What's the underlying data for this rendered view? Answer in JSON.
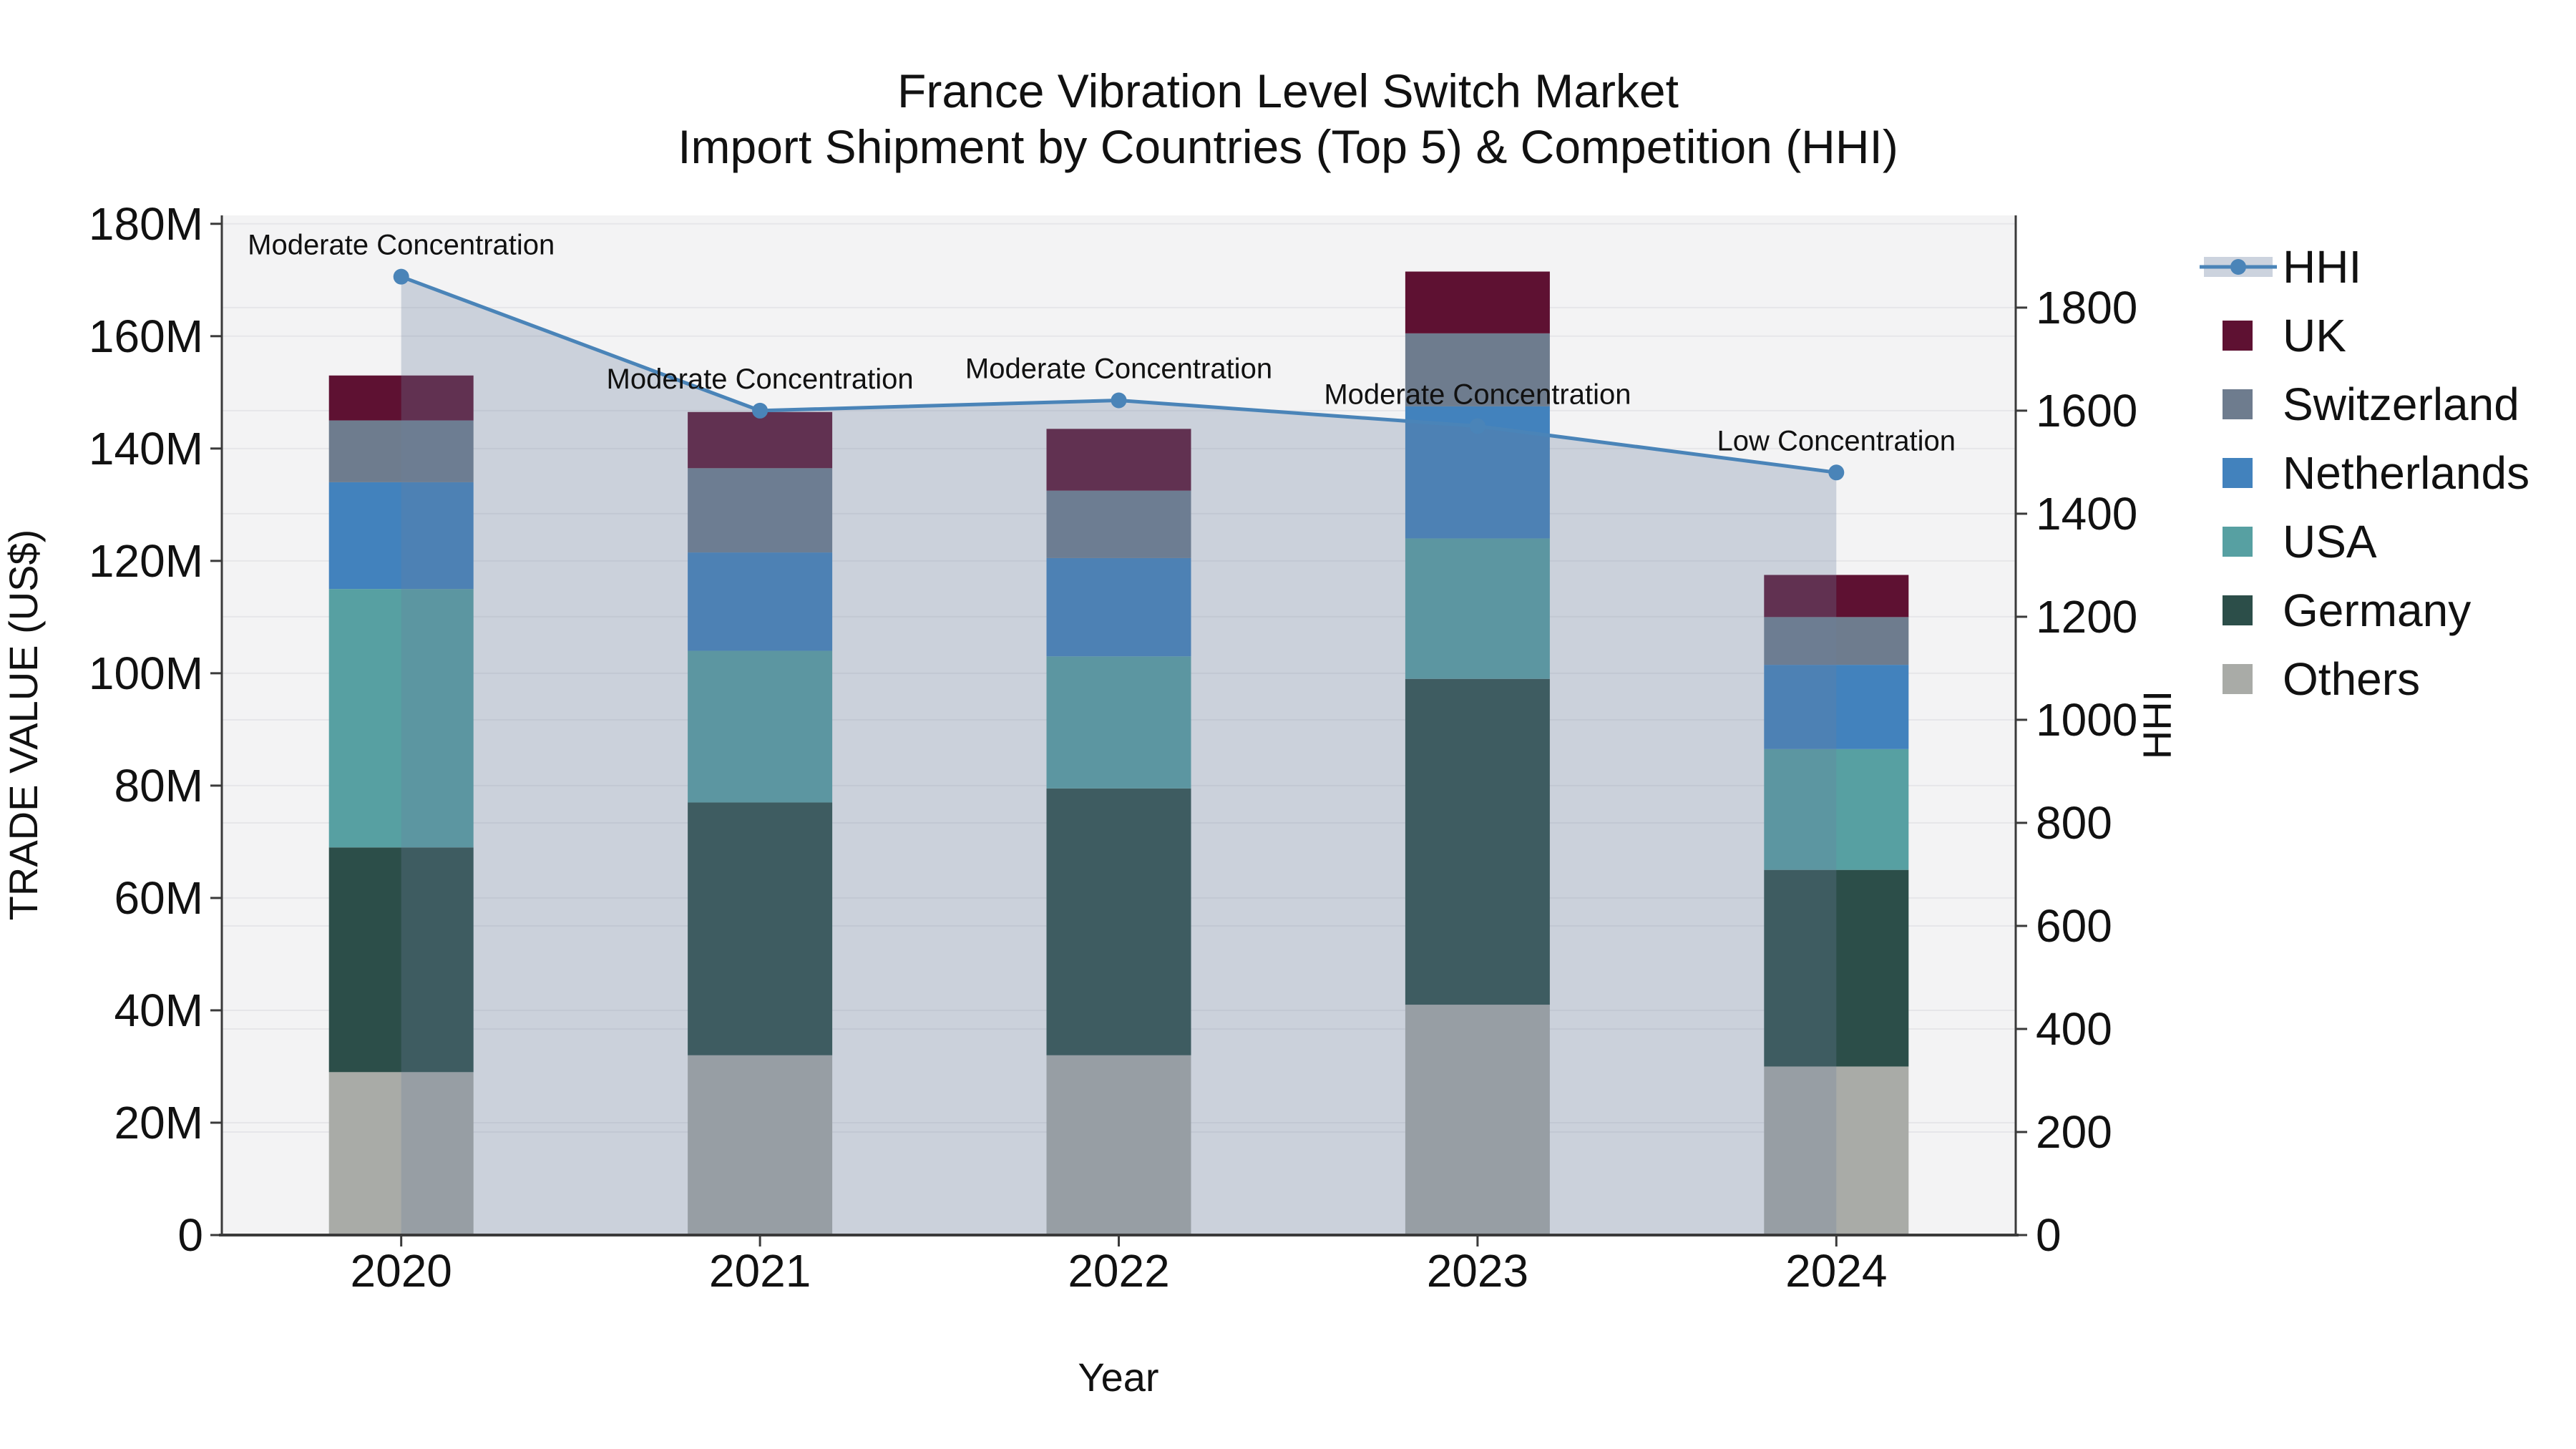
{
  "title": {
    "line1": "France Vibration Level Switch Market",
    "line2": "Import Shipment by Countries (Top 5) & Competition (HHI)"
  },
  "axes": {
    "x_title": "Year",
    "y_left_title": "TRADE VALUE (US$)",
    "y_right_title": "HHI"
  },
  "legend": [
    {
      "label": "HHI",
      "type": "line"
    },
    {
      "label": "UK",
      "type": "patch"
    },
    {
      "label": "Switzerland",
      "type": "patch"
    },
    {
      "label": "Netherlands",
      "type": "patch"
    },
    {
      "label": "USA",
      "type": "patch"
    },
    {
      "label": "Germany",
      "type": "patch"
    },
    {
      "label": "Others",
      "type": "patch"
    }
  ],
  "colors": {
    "UK": "#5e1132",
    "Switzerland": "#6e7c8e",
    "Netherlands": "#4282bd",
    "USA": "#57a0a2",
    "Germany": "#2c4e49",
    "Others": "#a9aba7",
    "hhi_line": "#4a84b8",
    "hhi_area": "rgba(106,126,160,0.29)",
    "plot_bg": "#f3f3f4",
    "grid": "#e6e6e9",
    "spine": "#3a3a3a",
    "text": "#111111",
    "legend_hhi_band": "#ccd3de"
  },
  "chart_data": {
    "type": "bar",
    "subtype": "stacked bars (trade value, left axis) + HHI line (right axis) with shaded area under line",
    "categories": [
      "2020",
      "2021",
      "2022",
      "2023",
      "2024"
    ],
    "value_unit": "million US$",
    "series": [
      {
        "name": "Others",
        "values": [
          29,
          32,
          32,
          41,
          30
        ]
      },
      {
        "name": "Germany",
        "values": [
          40,
          45,
          47.5,
          58,
          35
        ]
      },
      {
        "name": "USA",
        "values": [
          46,
          27,
          23.5,
          25,
          21.5
        ]
      },
      {
        "name": "Netherlands",
        "values": [
          19,
          17.5,
          17.5,
          23.5,
          15
        ]
      },
      {
        "name": "Switzerland",
        "values": [
          11,
          15,
          12,
          13,
          8.5
        ]
      },
      {
        "name": "UK",
        "values": [
          8,
          10,
          11,
          11,
          7.5
        ]
      }
    ],
    "stack_totals": [
      153,
      146.5,
      143.5,
      171.5,
      117.5
    ],
    "line_series": {
      "name": "HHI",
      "values": [
        1860,
        1600,
        1620,
        1570,
        1480
      ]
    },
    "annotations": [
      {
        "category": "2020",
        "text": "Moderate Concentration"
      },
      {
        "category": "2021",
        "text": "Moderate Concentration"
      },
      {
        "category": "2022",
        "text": "Moderate Concentration"
      },
      {
        "category": "2023",
        "text": "Moderate Concentration"
      },
      {
        "category": "2024",
        "text": "Low Concentration"
      }
    ],
    "y_left": {
      "tick_values": [
        0,
        20,
        40,
        60,
        80,
        100,
        120,
        140,
        160,
        180
      ],
      "tick_labels": [
        "0",
        "20M",
        "40M",
        "60M",
        "80M",
        "100M",
        "120M",
        "140M",
        "160M",
        "180M"
      ],
      "axis_max": 181.5
    },
    "y_right": {
      "tick_values": [
        0,
        200,
        400,
        600,
        800,
        1000,
        1200,
        1400,
        1600,
        1800
      ],
      "tick_labels": [
        "0",
        "200",
        "400",
        "600",
        "800",
        "1000",
        "1200",
        "1400",
        "1600",
        "1800"
      ],
      "axis_max": 1979
    },
    "grid": "on",
    "legend_position": "right, outside plot"
  }
}
